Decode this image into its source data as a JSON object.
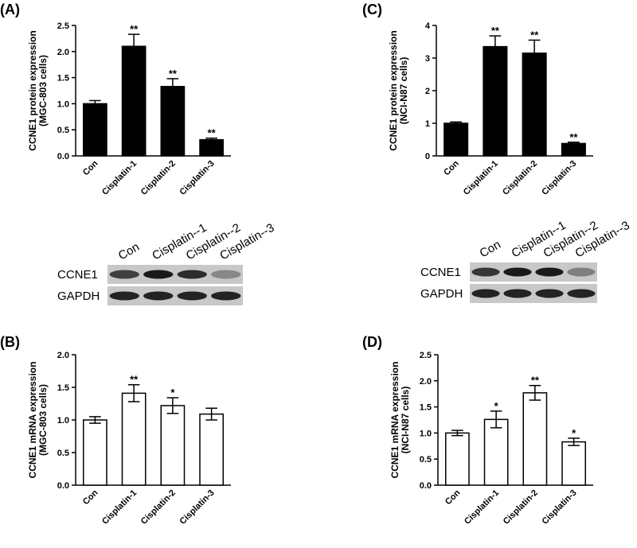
{
  "chart_data": [
    {
      "type": "bar",
      "panel_label": "(A)",
      "ylabel": [
        "CCNE1 protein expression",
        "(MGC-803 cells)"
      ],
      "categories": [
        "Con",
        "Cisplatin-1",
        "Cisplatin-2",
        "Cisplatin-3"
      ],
      "values": [
        1.0,
        2.1,
        1.33,
        0.31
      ],
      "errors": [
        0.06,
        0.23,
        0.15,
        0.03
      ],
      "annotations": [
        null,
        "**",
        "**",
        "**"
      ],
      "color": "#000000",
      "ylim": [
        0,
        2.5
      ],
      "yticks": [
        {
          "value": 0,
          "label": "0.0"
        },
        0.5,
        {
          "value": 1,
          "label": "1.0"
        },
        1.5,
        {
          "value": 2,
          "label": "2.0"
        },
        2.5
      ]
    },
    {
      "type": "bar",
      "panel_label": "(C)",
      "ylabel": [
        "CCNE1 protein expression",
        "(NCI-N87 cells)"
      ],
      "categories": [
        "Con",
        "Cisplatin-1",
        "Cisplatin-2",
        "Cisplatin-3"
      ],
      "values": [
        1.0,
        3.35,
        3.15,
        0.38
      ],
      "errors": [
        0.04,
        0.33,
        0.4,
        0.04
      ],
      "annotations": [
        null,
        "**",
        "**",
        "**"
      ],
      "color": "#000000",
      "ylim": [
        0,
        4
      ],
      "yticks": [
        0,
        1,
        2,
        3,
        4
      ]
    },
    {
      "type": "bar",
      "panel_label": "(B)",
      "ylabel": [
        "CCNE1 mRNA expression",
        "(MGC-803 cells)"
      ],
      "categories": [
        "Con",
        "Cisplatin-1",
        "Cisplatin-2",
        "Cisplatin-3"
      ],
      "values": [
        1.0,
        1.41,
        1.22,
        1.09
      ],
      "errors": [
        0.05,
        0.13,
        0.12,
        0.09
      ],
      "annotations": [
        null,
        "**",
        "*",
        null
      ],
      "color": "#ffffff",
      "ylim": [
        0,
        2
      ],
      "yticks": [
        {
          "value": 0,
          "label": "0.0"
        },
        0.5,
        {
          "value": 1,
          "label": "1.0"
        },
        1.5,
        {
          "value": 2,
          "label": "2.0"
        }
      ]
    },
    {
      "type": "bar",
      "panel_label": "(D)",
      "ylabel": [
        "CCNE1 mRNA expression",
        "(NCI-N87 cells)"
      ],
      "categories": [
        "Con",
        "Cisplatin-1",
        "Cisplatin-2",
        "Cisplatin-3"
      ],
      "values": [
        1.0,
        1.26,
        1.77,
        0.83
      ],
      "errors": [
        0.05,
        0.16,
        0.14,
        0.07
      ],
      "annotations": [
        null,
        "*",
        "**",
        "*"
      ],
      "color": "#ffffff",
      "ylim": [
        0,
        2.5
      ],
      "yticks": [
        {
          "value": 0,
          "label": "0.0"
        },
        0.5,
        {
          "value": 1,
          "label": "1.0"
        },
        1.5,
        {
          "value": 2,
          "label": "2.0"
        },
        2.5
      ]
    }
  ],
  "blots": [
    {
      "lanes": [
        "Con",
        "Cisplatin--1",
        "Cisplatin--2",
        "Cisplatin--3"
      ],
      "rows": [
        "CCNE1",
        "GAPDH"
      ]
    },
    {
      "lanes": [
        "Con",
        "Cisplatin--1",
        "Cisplatin--2",
        "Cisplatin--3"
      ],
      "rows": [
        "CCNE1",
        "GAPDH"
      ]
    }
  ]
}
